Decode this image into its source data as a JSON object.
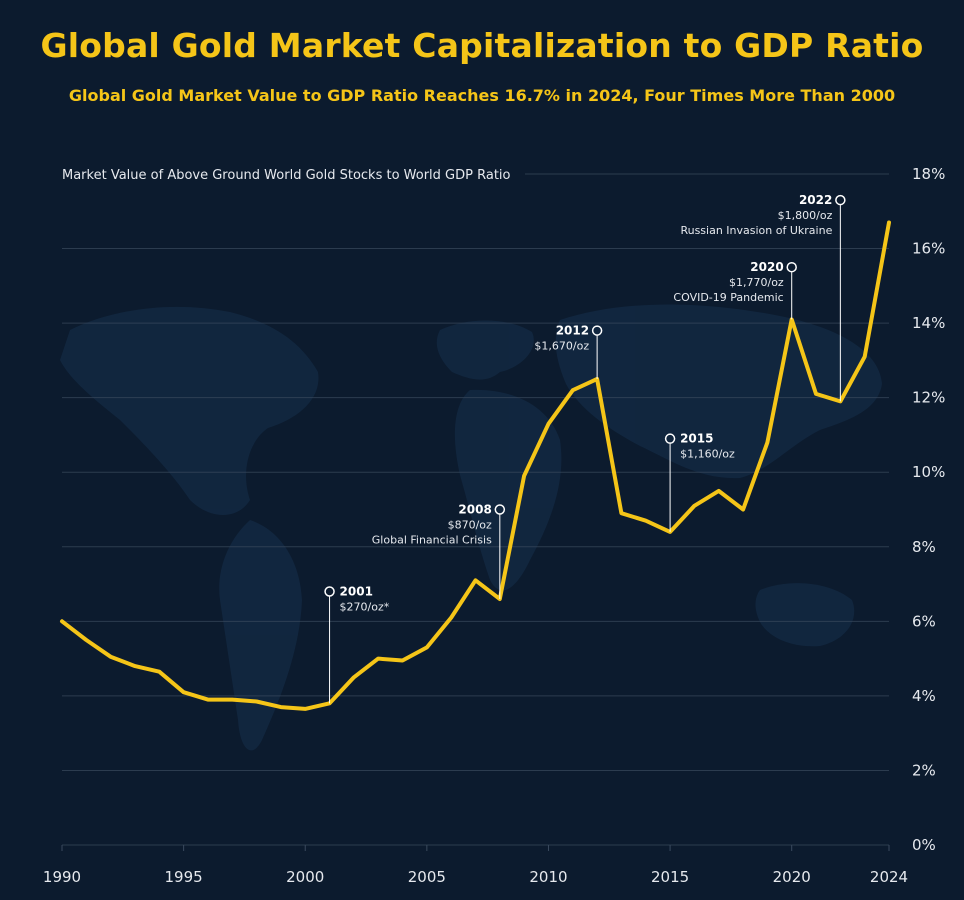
{
  "title": "Global Gold Market Capitalization to GDP Ratio",
  "subtitle": "Global Gold Market Value to GDP Ratio Reaches 16.7% in 2024, Four Times More Than 2000",
  "colors": {
    "background": "#0c1b2e",
    "line": "#f5c518",
    "title": "#f5c518",
    "grid": "#3a4a5e",
    "text": "#e6e9ee"
  },
  "chart_data": {
    "type": "line",
    "ylabel": "Market Value of Above Ground World Gold Stocks to World GDP Ratio",
    "xlabel": "",
    "xlim": [
      1990,
      2024
    ],
    "ylim": [
      0,
      18
    ],
    "grid": true,
    "x_tick_values": [
      1990,
      1995,
      2000,
      2005,
      2010,
      2015,
      2020,
      2024
    ],
    "x_tick_labels": [
      "1990",
      "1995",
      "2000",
      "2005",
      "2010",
      "2015",
      "2020",
      "2024"
    ],
    "y_tick_values": [
      0,
      2,
      4,
      6,
      8,
      10,
      12,
      14,
      16,
      18
    ],
    "y_tick_labels": [
      "0%",
      "2%",
      "4%",
      "6%",
      "8%",
      "10%",
      "12%",
      "14%",
      "16%",
      "18%"
    ],
    "series": [
      {
        "x": [
          1990,
          1991,
          1992,
          1993,
          1994,
          1995,
          1996,
          1997,
          1998,
          1999,
          2000,
          2001,
          2002,
          2003,
          2004,
          2005,
          2006,
          2007,
          2008,
          2009,
          2010,
          2011,
          2012,
          2013,
          2014,
          2015,
          2016,
          2017,
          2018,
          2019,
          2020,
          2021,
          2022,
          2023,
          2024
        ],
        "y": [
          6.0,
          5.5,
          5.05,
          4.8,
          4.65,
          4.1,
          3.9,
          3.9,
          3.85,
          3.7,
          3.65,
          3.8,
          4.5,
          5.0,
          4.95,
          5.3,
          6.1,
          7.1,
          6.6,
          9.9,
          11.3,
          12.2,
          12.5,
          8.9,
          8.7,
          8.4,
          9.1,
          9.5,
          9.0,
          10.8,
          14.1,
          12.1,
          11.9,
          13.1,
          16.7
        ]
      }
    ],
    "annotations": [
      {
        "year": "2001",
        "x": 2001,
        "y": 3.8,
        "top": 6.8,
        "lines": [
          "$270/oz*"
        ]
      },
      {
        "year": "2008",
        "x": 2008,
        "y": 6.6,
        "top": 9.0,
        "lines": [
          "$870/oz",
          "Global Financial Crisis"
        ]
      },
      {
        "year": "2012",
        "x": 2012,
        "y": 12.5,
        "top": 13.8,
        "lines": [
          "$1,670/oz"
        ]
      },
      {
        "year": "2015",
        "x": 2015,
        "y": 8.4,
        "top": 10.9,
        "lines": [
          "$1,160/oz"
        ]
      },
      {
        "year": "2020",
        "x": 2020,
        "y": 14.1,
        "top": 15.5,
        "lines": [
          "$1,770/oz",
          "COVID-19 Pandemic"
        ]
      },
      {
        "year": "2022",
        "x": 2022,
        "y": 11.9,
        "top": 17.3,
        "lines": [
          "$1,800/oz",
          "Russian Invasion of Ukraine"
        ]
      }
    ]
  }
}
